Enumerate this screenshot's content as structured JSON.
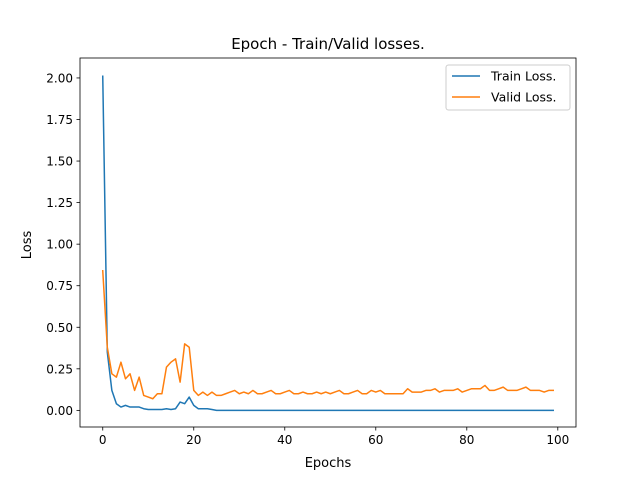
{
  "chart_data": {
    "type": "line",
    "title": "Epoch - Train/Valid losses.",
    "xlabel": "Epochs",
    "ylabel": "Loss",
    "xlim": [
      -5,
      104
    ],
    "ylim": [
      -0.1,
      2.12
    ],
    "xticks": [
      0,
      20,
      40,
      60,
      80,
      100
    ],
    "yticks": [
      0.0,
      0.25,
      0.5,
      0.75,
      1.0,
      1.25,
      1.5,
      1.75,
      2.0
    ],
    "xtick_labels": [
      "0",
      "20",
      "40",
      "60",
      "80",
      "100"
    ],
    "ytick_labels": [
      "0.00",
      "0.25",
      "0.50",
      "0.75",
      "1.00",
      "1.25",
      "1.50",
      "1.75",
      "2.00"
    ],
    "grid": false,
    "legend_position": "top-right",
    "series": [
      {
        "name": "Train Loss.",
        "color": "#1f77b4",
        "values": [
          2.01,
          0.35,
          0.12,
          0.04,
          0.02,
          0.03,
          0.02,
          0.02,
          0.02,
          0.01,
          0.005,
          0.005,
          0.005,
          0.005,
          0.01,
          0.005,
          0.01,
          0.05,
          0.04,
          0.08,
          0.03,
          0.01,
          0.01,
          0.01,
          0.005,
          0.0,
          0.0,
          0.0,
          0.0,
          0.0,
          0.0,
          0.0,
          0.0,
          0.0,
          0.0,
          0.0,
          0.0,
          0.0,
          0.0,
          0.0,
          0.0,
          0.0,
          0.0,
          0.0,
          0.0,
          0.0,
          0.0,
          0.0,
          0.0,
          0.0,
          0.0,
          0.0,
          0.0,
          0.0,
          0.0,
          0.0,
          0.0,
          0.0,
          0.0,
          0.0,
          0.0,
          0.0,
          0.0,
          0.0,
          0.0,
          0.0,
          0.0,
          0.0,
          0.0,
          0.0,
          0.0,
          0.0,
          0.0,
          0.0,
          0.0,
          0.0,
          0.0,
          0.0,
          0.0,
          0.0,
          0.0,
          0.0,
          0.0,
          0.0,
          0.0,
          0.0,
          0.0,
          0.0,
          0.0,
          0.0,
          0.0,
          0.0,
          0.0,
          0.0,
          0.0,
          0.0,
          0.0,
          0.0,
          0.0,
          0.0
        ]
      },
      {
        "name": "Valid Loss.",
        "color": "#ff7f0e",
        "values": [
          0.84,
          0.38,
          0.22,
          0.2,
          0.29,
          0.19,
          0.22,
          0.12,
          0.2,
          0.09,
          0.08,
          0.07,
          0.1,
          0.1,
          0.26,
          0.29,
          0.31,
          0.17,
          0.4,
          0.38,
          0.12,
          0.09,
          0.11,
          0.09,
          0.11,
          0.09,
          0.09,
          0.1,
          0.11,
          0.12,
          0.1,
          0.11,
          0.1,
          0.12,
          0.1,
          0.1,
          0.11,
          0.12,
          0.1,
          0.1,
          0.11,
          0.12,
          0.1,
          0.1,
          0.11,
          0.1,
          0.1,
          0.11,
          0.1,
          0.11,
          0.1,
          0.11,
          0.12,
          0.1,
          0.1,
          0.11,
          0.12,
          0.1,
          0.1,
          0.12,
          0.11,
          0.12,
          0.1,
          0.1,
          0.1,
          0.1,
          0.1,
          0.13,
          0.11,
          0.11,
          0.11,
          0.12,
          0.12,
          0.13,
          0.11,
          0.12,
          0.12,
          0.12,
          0.13,
          0.11,
          0.12,
          0.13,
          0.13,
          0.13,
          0.15,
          0.12,
          0.12,
          0.13,
          0.14,
          0.12,
          0.12,
          0.12,
          0.13,
          0.14,
          0.12,
          0.12,
          0.12,
          0.11,
          0.12,
          0.12
        ]
      }
    ]
  }
}
